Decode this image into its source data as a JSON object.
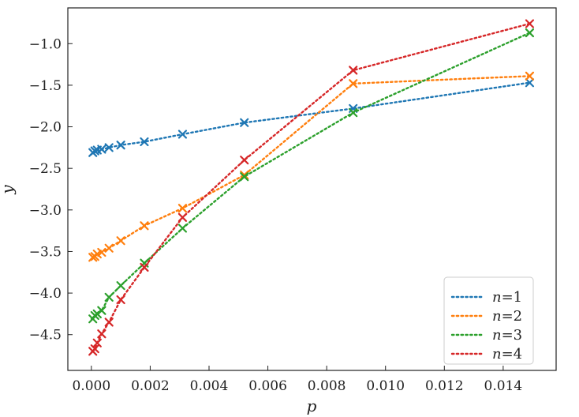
{
  "chart_data": {
    "type": "line",
    "title": "",
    "xlabel": "p",
    "ylabel": "y",
    "xlim": [
      -0.0008,
      0.0158
    ],
    "ylim": [
      -4.93,
      -0.57
    ],
    "xticks": [
      0.0,
      0.002,
      0.004,
      0.006,
      0.008,
      0.01,
      0.012,
      0.014
    ],
    "xtick_labels": [
      "0.000",
      "0.002",
      "0.004",
      "0.006",
      "0.008",
      "0.010",
      "0.012",
      "0.014"
    ],
    "yticks": [
      -1.0,
      -1.5,
      -2.0,
      -2.5,
      -3.0,
      -3.5,
      -4.0,
      -4.5
    ],
    "ytick_labels": [
      "−1.0",
      "−1.5",
      "−2.0",
      "−2.5",
      "−3.0",
      "−3.5",
      "−4.0",
      "−4.5"
    ],
    "grid": false,
    "legend_position": "lower-right",
    "marker": "x",
    "linestyle": "dotted",
    "x": [
      5e-05,
      0.00012,
      0.0002,
      0.00035,
      0.0006,
      0.001,
      0.0018,
      0.0031,
      0.0052,
      0.0089,
      0.0149
    ],
    "series": [
      {
        "name": "n=1",
        "legend_var": "n",
        "legend_val": "=1",
        "color": "#1f77b4",
        "values": [
          -2.31,
          -2.29,
          -2.28,
          -2.27,
          -2.25,
          -2.22,
          -2.18,
          -2.09,
          -1.95,
          -1.78,
          -1.47
        ]
      },
      {
        "name": "n=2",
        "legend_var": "n",
        "legend_val": "=2",
        "color": "#ff7f0e",
        "values": [
          -3.57,
          -3.56,
          -3.53,
          -3.51,
          -3.46,
          -3.37,
          -3.19,
          -2.98,
          -2.58,
          -1.48,
          -1.39
        ]
      },
      {
        "name": "n=3",
        "legend_var": "n",
        "legend_val": "=3",
        "color": "#2ca02c",
        "values": [
          -4.31,
          -4.27,
          -4.25,
          -4.21,
          -4.05,
          -3.91,
          -3.64,
          -3.22,
          -2.6,
          -1.83,
          -0.87
        ]
      },
      {
        "name": "n=4",
        "legend_var": "n",
        "legend_val": "=4",
        "color": "#d62728",
        "values": [
          -4.7,
          -4.67,
          -4.6,
          -4.49,
          -4.35,
          -4.08,
          -3.69,
          -3.09,
          -2.4,
          -1.32,
          -0.76
        ]
      }
    ]
  }
}
